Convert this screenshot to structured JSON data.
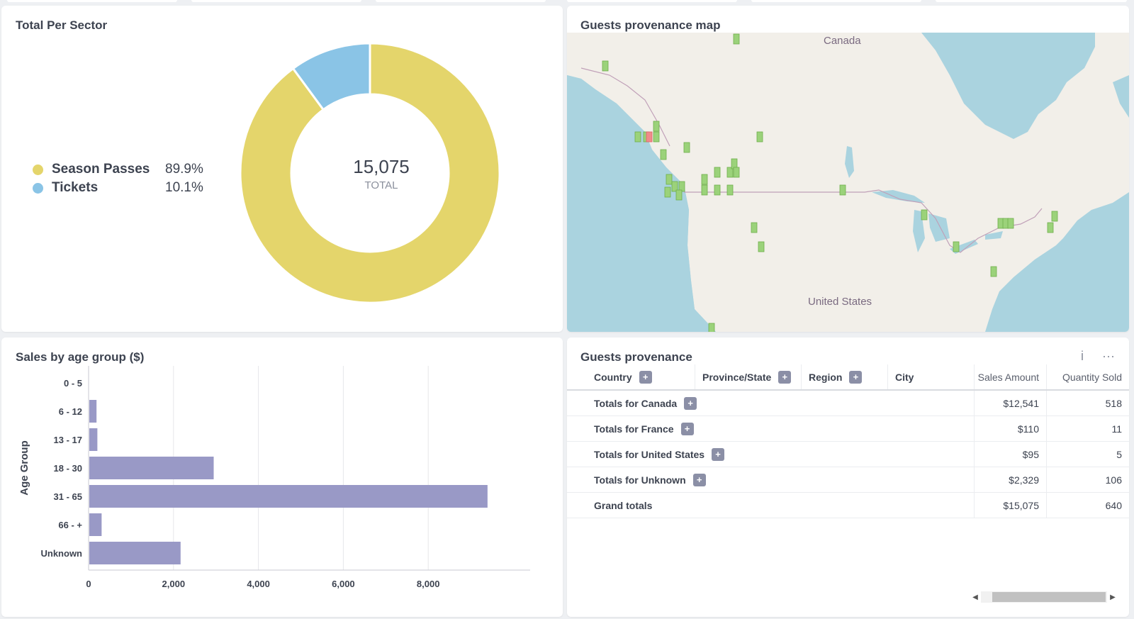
{
  "sector_card": {
    "title": "Total Per Sector",
    "center_value": "15,075",
    "center_label": "TOTAL",
    "legend": [
      {
        "label": "Season Passes",
        "pct": "89.9%",
        "color": "#e4d56b"
      },
      {
        "label": "Tickets",
        "pct": "10.1%",
        "color": "#8ac4e6"
      }
    ]
  },
  "map_card": {
    "title": "Guests provenance map",
    "labels": {
      "canada": "Canada",
      "us": "United States"
    }
  },
  "age_card": {
    "title": "Sales by age group ($)"
  },
  "prov_card": {
    "title": "Guests provenance",
    "info_icon": "i",
    "more_icon": "···",
    "headers": {
      "country": "Country",
      "prov": "Province/State",
      "region": "Region",
      "city": "City",
      "sales": "Sales Amount",
      "qty": "Quantity Sold"
    },
    "rows": [
      {
        "label": "Totals for Canada",
        "sales": "$12,541",
        "qty": "518",
        "expandable": true
      },
      {
        "label": "Totals for France",
        "sales": "$110",
        "qty": "11",
        "expandable": true
      },
      {
        "label": "Totals for United States",
        "sales": "$95",
        "qty": "5",
        "expandable": true
      },
      {
        "label": "Totals for Unknown",
        "sales": "$2,329",
        "qty": "106",
        "expandable": true
      },
      {
        "label": "Grand totals",
        "sales": "$15,075",
        "qty": "640",
        "expandable": false
      }
    ]
  },
  "chart_data": [
    {
      "type": "pie",
      "title": "Total Per Sector",
      "categories": [
        "Season Passes",
        "Tickets"
      ],
      "values": [
        89.9,
        10.1
      ],
      "total": 15075,
      "colors": [
        "#e4d56b",
        "#8ac4e6"
      ]
    },
    {
      "type": "bar",
      "orientation": "horizontal",
      "title": "Sales by age group ($)",
      "ylabel": "Age Group",
      "xlabel": "",
      "categories": [
        "0 - 5",
        "6 - 12",
        "13 - 17",
        "18 - 30",
        "31 - 65",
        "66 - +",
        "Unknown"
      ],
      "values": [
        0,
        170,
        190,
        2930,
        9380,
        290,
        2150
      ],
      "xlim": [
        0,
        10400
      ],
      "xticks": [
        0,
        2000,
        4000,
        6000,
        8000
      ],
      "xtick_labels": [
        "0",
        "2,000",
        "4,000",
        "6,000",
        "8,000"
      ],
      "color": "#9999c6",
      "grid": true
    }
  ]
}
